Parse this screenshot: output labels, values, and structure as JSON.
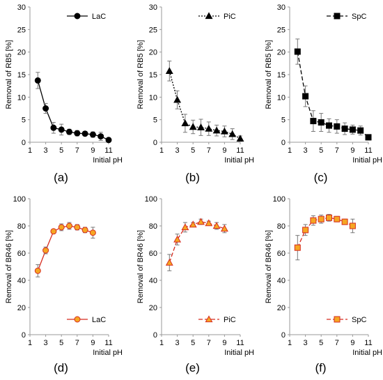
{
  "chart_data": [
    {
      "type": "line",
      "panel": "a",
      "caption": "(a)",
      "color": "#000000",
      "dash": "solid",
      "marker": "circle",
      "marker_fill": "#000000",
      "series": [
        {
          "name": "LaC",
          "x": [
            2,
            3,
            4,
            5,
            6,
            7,
            8,
            9,
            10,
            11
          ],
          "values": [
            13.7,
            7.5,
            3.2,
            2.8,
            2.3,
            2.0,
            1.9,
            1.7,
            1.3,
            0.5
          ],
          "errors": [
            1.8,
            1.1,
            1.2,
            1.2,
            0.6,
            0.6,
            0.5,
            0.6,
            0.9,
            0.5
          ]
        }
      ],
      "xlabel": "Initial pH",
      "ylabel": "Removal of RB5 [%]",
      "xlim": [
        1,
        11
      ],
      "ylim": [
        0,
        30
      ],
      "xticks": [
        1,
        3,
        5,
        7,
        9,
        11
      ],
      "yticks": [
        0,
        5,
        10,
        15,
        20,
        25,
        30
      ],
      "legend": "top-right",
      "grid": false
    },
    {
      "type": "line",
      "panel": "b",
      "caption": "(b)",
      "color": "#000000",
      "dash": "dotted",
      "marker": "triangle",
      "marker_fill": "#000000",
      "series": [
        {
          "name": "PiC",
          "x": [
            2,
            3,
            4,
            5,
            6,
            7,
            8,
            9,
            10,
            11
          ],
          "values": [
            15.8,
            9.4,
            4.2,
            3.4,
            3.3,
            3.0,
            2.6,
            2.4,
            1.8,
            0.8
          ],
          "errors": [
            2.2,
            2.0,
            2.0,
            1.5,
            1.8,
            1.5,
            1.2,
            1.2,
            1.2,
            0.6
          ]
        }
      ],
      "xlabel": "Initial pH",
      "ylabel": "Removal of RB5 [%]",
      "xlim": [
        1,
        11
      ],
      "ylim": [
        0,
        30
      ],
      "xticks": [
        1,
        3,
        5,
        7,
        9,
        11
      ],
      "yticks": [
        0,
        5,
        10,
        15,
        20,
        25,
        30
      ],
      "legend": "top-right",
      "grid": false
    },
    {
      "type": "line",
      "panel": "c",
      "caption": "(c)",
      "color": "#000000",
      "dash": "dashed",
      "marker": "square",
      "marker_fill": "#000000",
      "series": [
        {
          "name": "SpC",
          "x": [
            2,
            3,
            4,
            5,
            6,
            7,
            8,
            9,
            10,
            11
          ],
          "values": [
            20.1,
            10.2,
            4.7,
            4.4,
            3.7,
            3.5,
            3.0,
            2.8,
            2.6,
            1.1
          ],
          "errors": [
            2.8,
            2.3,
            2.3,
            2.0,
            1.5,
            1.5,
            1.3,
            1.0,
            1.0,
            0.6
          ]
        }
      ],
      "xlabel": "Initial pH",
      "ylabel": "Removal of RB5 [%]",
      "xlim": [
        1,
        11
      ],
      "ylim": [
        0,
        30
      ],
      "xticks": [
        1,
        3,
        5,
        7,
        9,
        11
      ],
      "yticks": [
        0,
        5,
        10,
        15,
        20,
        25,
        30
      ],
      "legend": "top-right",
      "grid": false
    },
    {
      "type": "line",
      "panel": "d",
      "caption": "(d)",
      "color": "#d72b1f",
      "dash": "solid",
      "marker": "circle",
      "marker_fill": "#f5a623",
      "series": [
        {
          "name": "LaC",
          "x": [
            2,
            3,
            4,
            5,
            6,
            7,
            8,
            9
          ],
          "values": [
            47,
            62,
            76,
            79,
            80,
            79,
            77,
            75
          ],
          "errors": [
            4.5,
            2.5,
            1.5,
            2.5,
            2.5,
            2.0,
            2.0,
            4.0
          ]
        }
      ],
      "xlabel": "Initial pH",
      "ylabel": "Removal of BR46 [%]",
      "xlim": [
        1,
        11
      ],
      "ylim": [
        0,
        100
      ],
      "xticks": [
        1,
        3,
        5,
        7,
        9,
        11
      ],
      "yticks": [
        0,
        20,
        40,
        60,
        80,
        100
      ],
      "legend": "bottom-right",
      "grid": false
    },
    {
      "type": "line",
      "panel": "e",
      "caption": "(e)",
      "color": "#d72b1f",
      "dash": "dashed",
      "marker": "triangle",
      "marker_fill": "#f5a623",
      "series": [
        {
          "name": "PiC",
          "x": [
            2,
            3,
            4,
            5,
            6,
            7,
            8,
            9
          ],
          "values": [
            53,
            70,
            79,
            81,
            83,
            82,
            80,
            78
          ],
          "errors": [
            6.0,
            4.0,
            3.5,
            1.5,
            2.0,
            1.5,
            2.5,
            3.0
          ]
        }
      ],
      "xlabel": "Initial pH",
      "ylabel": "Removal of BR46 [%]",
      "xlim": [
        1,
        11
      ],
      "ylim": [
        0,
        100
      ],
      "xticks": [
        1,
        3,
        5,
        7,
        9,
        11
      ],
      "yticks": [
        0,
        20,
        40,
        60,
        80,
        100
      ],
      "legend": "bottom-right",
      "grid": false
    },
    {
      "type": "line",
      "panel": "f",
      "caption": "(f)",
      "color": "#d72b1f",
      "dash": "dashed",
      "marker": "square",
      "marker_fill": "#f5a623",
      "series": [
        {
          "name": "SpC",
          "x": [
            2,
            3,
            4,
            5,
            6,
            7,
            8,
            9
          ],
          "values": [
            64,
            77,
            84,
            85,
            86,
            85,
            83,
            80
          ],
          "errors": [
            9.0,
            4.0,
            3.5,
            3.0,
            2.5,
            2.0,
            2.0,
            5.0
          ]
        }
      ],
      "xlabel": "Initial pH",
      "ylabel": "Removal of BR46 [%]",
      "xlim": [
        1,
        11
      ],
      "ylim": [
        0,
        100
      ],
      "xticks": [
        1,
        3,
        5,
        7,
        9,
        11
      ],
      "yticks": [
        0,
        20,
        40,
        60,
        80,
        100
      ],
      "legend": "bottom-right",
      "grid": false
    }
  ]
}
